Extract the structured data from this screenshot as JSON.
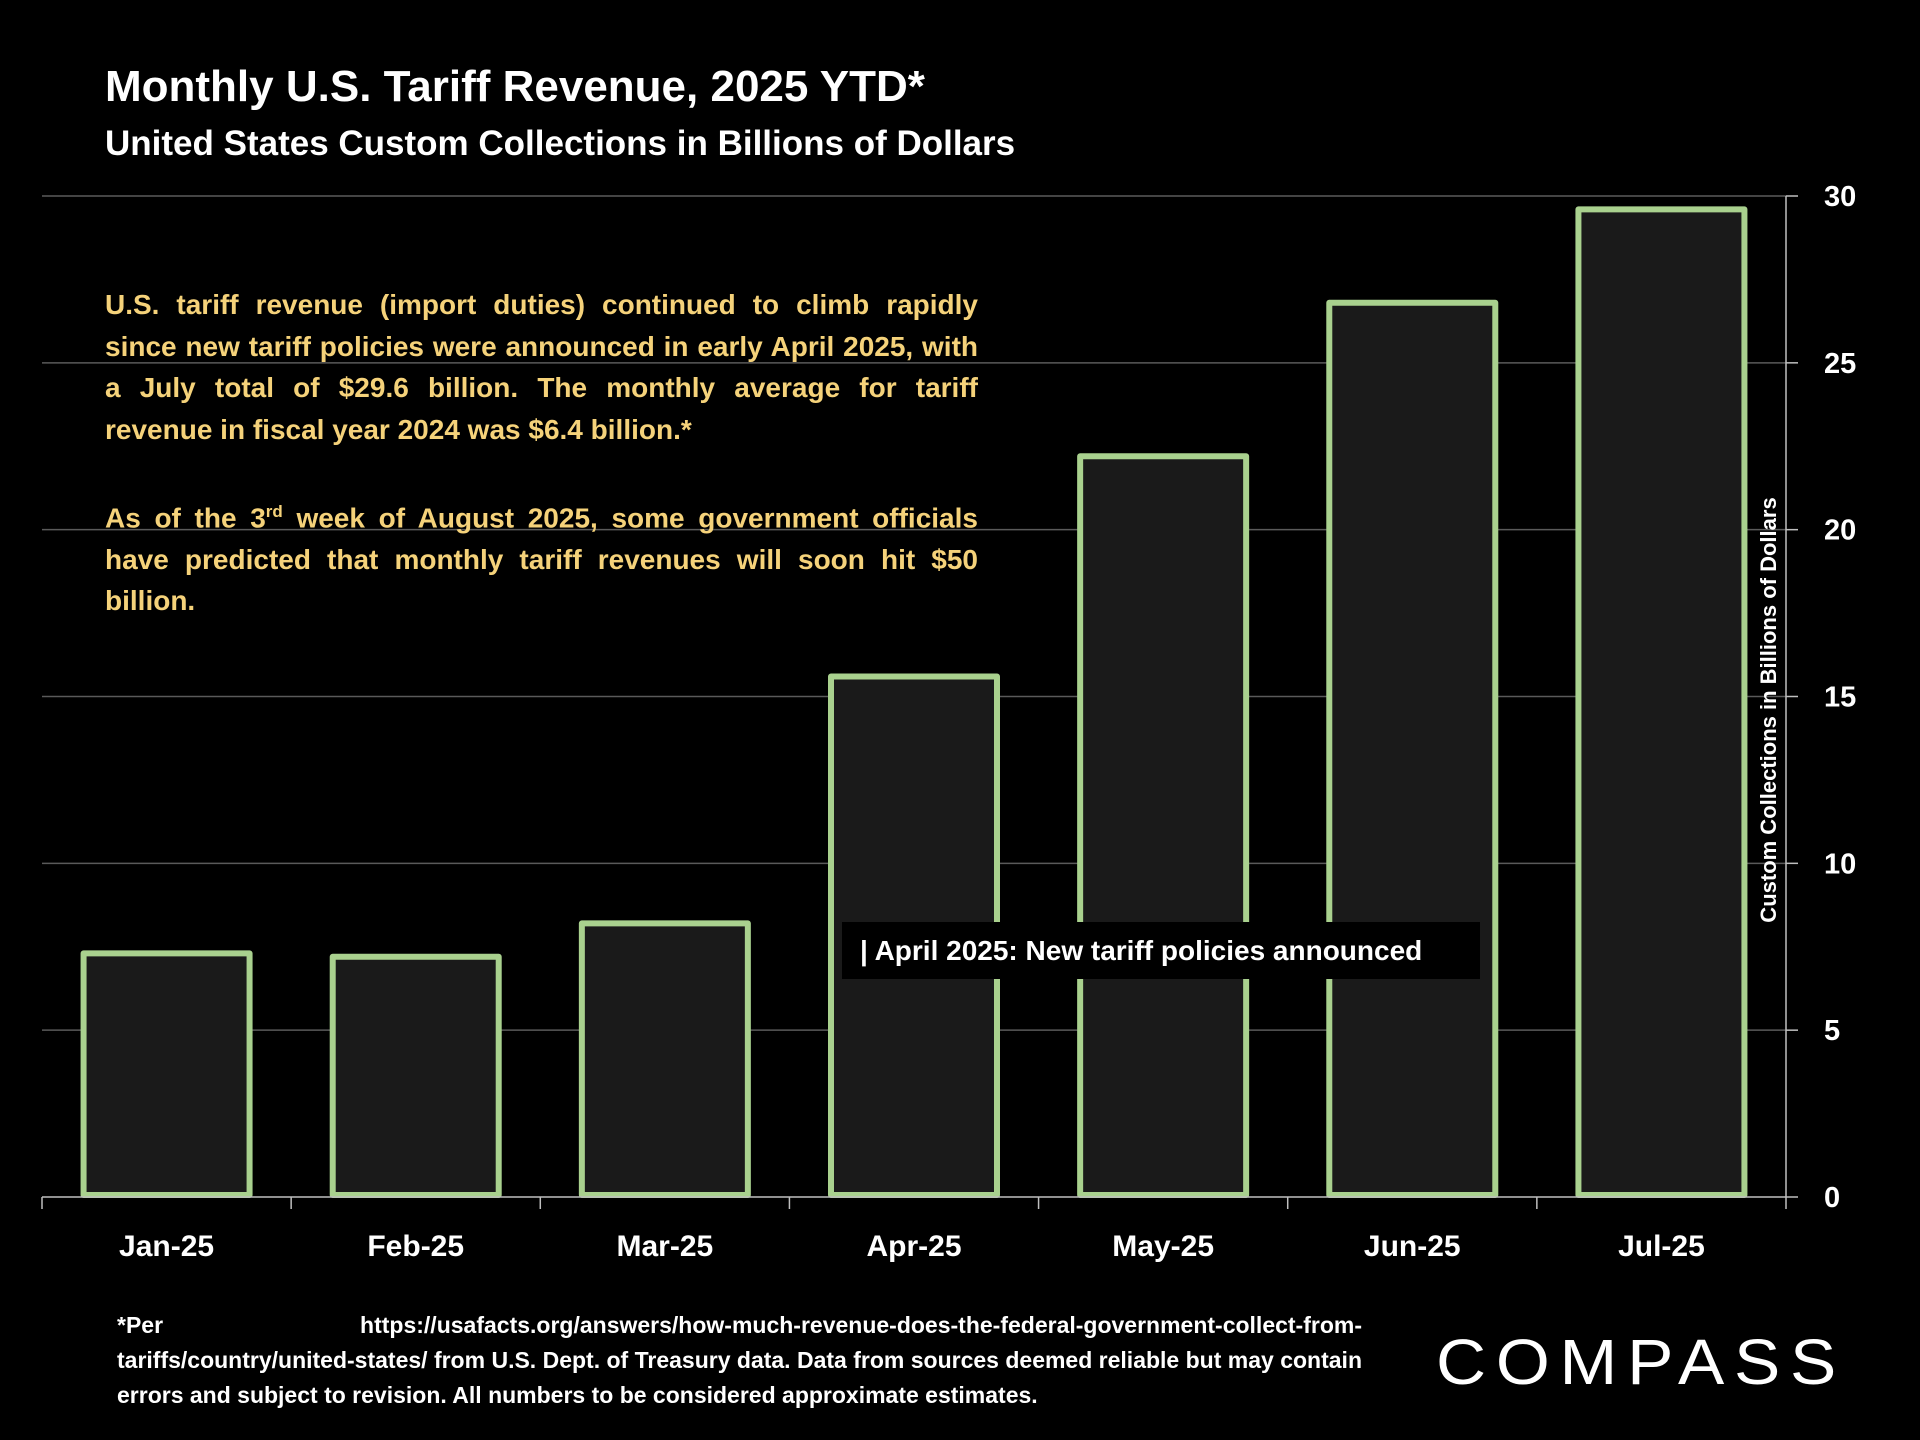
{
  "title": "Monthly U.S. Tariff Revenue, 2025 YTD*",
  "subtitle": "United States Custom Collections in Billions of Dollars",
  "note": {
    "paragraph1": "U.S. tariff revenue (import duties) continued to climb rapidly since new tariff policies were announced in early April 2025, with a July total of $29.6 billion. The monthly average for tariff revenue in fiscal year 2024 was $6.4 billion.*",
    "paragraph2_before": "As of the 3",
    "paragraph2_sup": "rd",
    "paragraph2_after": " week of August 2025, some government officials have predicted that monthly tariff revenues will soon hit $50 billion."
  },
  "annotation": "| April 2025:  New tariff policies announced",
  "footnote": "*Per https://usafacts.org/answers/how-much-revenue-does-the-federal-government-collect-from-tariffs/country/united-states/ from U.S. Dept. of Treasury data. Data from sources deemed reliable but may contain errors and subject to revision. All numbers to be considered approximate estimates.",
  "logo_text": "COMPASS",
  "colors": {
    "background": "#000000",
    "bar_fill": "#1a1a1a",
    "bar_outline": "#a9d18e",
    "gridline": "#5a5a5a",
    "note_text": "#f5d27a",
    "text": "#ffffff"
  },
  "chart_data": {
    "type": "bar",
    "categories": [
      "Jan-25",
      "Feb-25",
      "Mar-25",
      "Apr-25",
      "May-25",
      "Jun-25",
      "Jul-25"
    ],
    "values": [
      7.3,
      7.2,
      8.2,
      15.6,
      22.2,
      26.8,
      29.6
    ],
    "ylabel": "Custom Collections in Billions of Dollars",
    "ylim": [
      0,
      30
    ],
    "yticks": [
      0,
      5,
      10,
      15,
      20,
      25,
      30
    ],
    "y_axis_side": "right",
    "grid": true
  }
}
